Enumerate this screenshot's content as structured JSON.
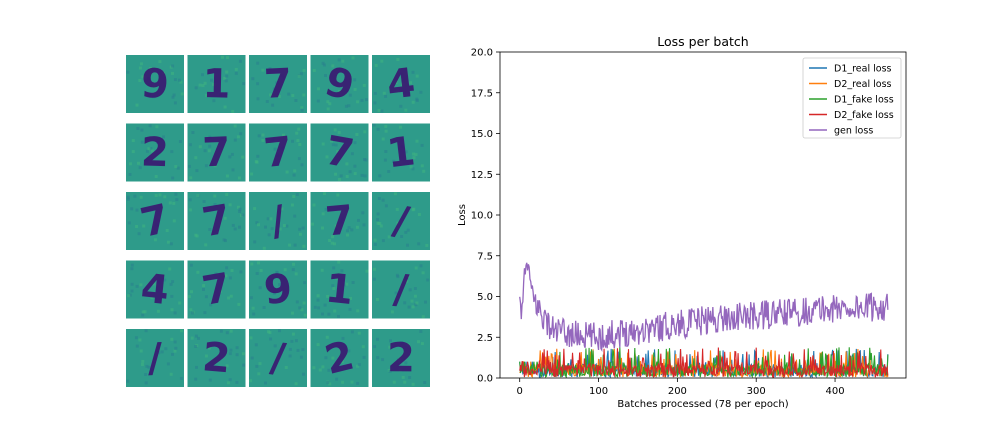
{
  "figure": {
    "grid_panel": {
      "rows": 5,
      "cols": 5,
      "background_color": "#2e9b8a",
      "ink_color": "#3b0f70",
      "glyphs": [
        "9",
        "1",
        "7",
        "9",
        "4",
        "2",
        "7",
        "7",
        "7",
        "1",
        "7",
        "7",
        "/",
        "7",
        "/",
        "4",
        "7",
        "9",
        "1",
        "/",
        "/",
        "2",
        "/",
        "2",
        "2"
      ]
    },
    "chart_data": {
      "type": "line",
      "title": "Loss per batch",
      "xlabel": "Batches processed (78 per epoch)",
      "ylabel": "Loss",
      "xlim": [
        -25,
        490
      ],
      "ylim": [
        0,
        20
      ],
      "xticks": [
        0,
        100,
        200,
        300,
        400
      ],
      "yticks": [
        0.0,
        2.5,
        5.0,
        7.5,
        10.0,
        12.5,
        15.0,
        17.5,
        20.0
      ],
      "xtick_labels": [
        "0",
        "100",
        "200",
        "300",
        "400"
      ],
      "ytick_labels": [
        "0.0",
        "2.5",
        "5.0",
        "7.5",
        "10.0",
        "12.5",
        "15.0",
        "17.5",
        "20.0"
      ],
      "legend_position": "top-right",
      "grid": false,
      "n_points": 468,
      "series": [
        {
          "name": "D1_real loss",
          "color": "#1f77b4",
          "approx_mean": 0.5,
          "approx_max": 1.8
        },
        {
          "name": "D2_real loss",
          "color": "#ff7f0e",
          "approx_mean": 0.5,
          "approx_max": 1.8
        },
        {
          "name": "D1_fake loss",
          "color": "#2ca02c",
          "approx_mean": 0.5,
          "approx_max": 1.9
        },
        {
          "name": "D2_fake loss",
          "color": "#d62728",
          "approx_mean": 0.5,
          "approx_max": 1.9
        },
        {
          "name": "gen loss",
          "color": "#9467bd",
          "keypoints": [
            [
              0,
              4.0
            ],
            [
              5,
              5.5
            ],
            [
              10,
              7.2
            ],
            [
              15,
              5.0
            ],
            [
              25,
              4.2
            ],
            [
              40,
              3.0
            ],
            [
              60,
              2.7
            ],
            [
              80,
              2.6
            ],
            [
              100,
              2.5
            ],
            [
              130,
              2.8
            ],
            [
              160,
              3.0
            ],
            [
              200,
              3.3
            ],
            [
              230,
              3.5
            ],
            [
              260,
              3.7
            ],
            [
              300,
              3.8
            ],
            [
              340,
              4.0
            ],
            [
              380,
              4.2
            ],
            [
              420,
              4.3
            ],
            [
              467,
              4.4
            ]
          ],
          "approx_noise": 0.9
        }
      ]
    }
  }
}
